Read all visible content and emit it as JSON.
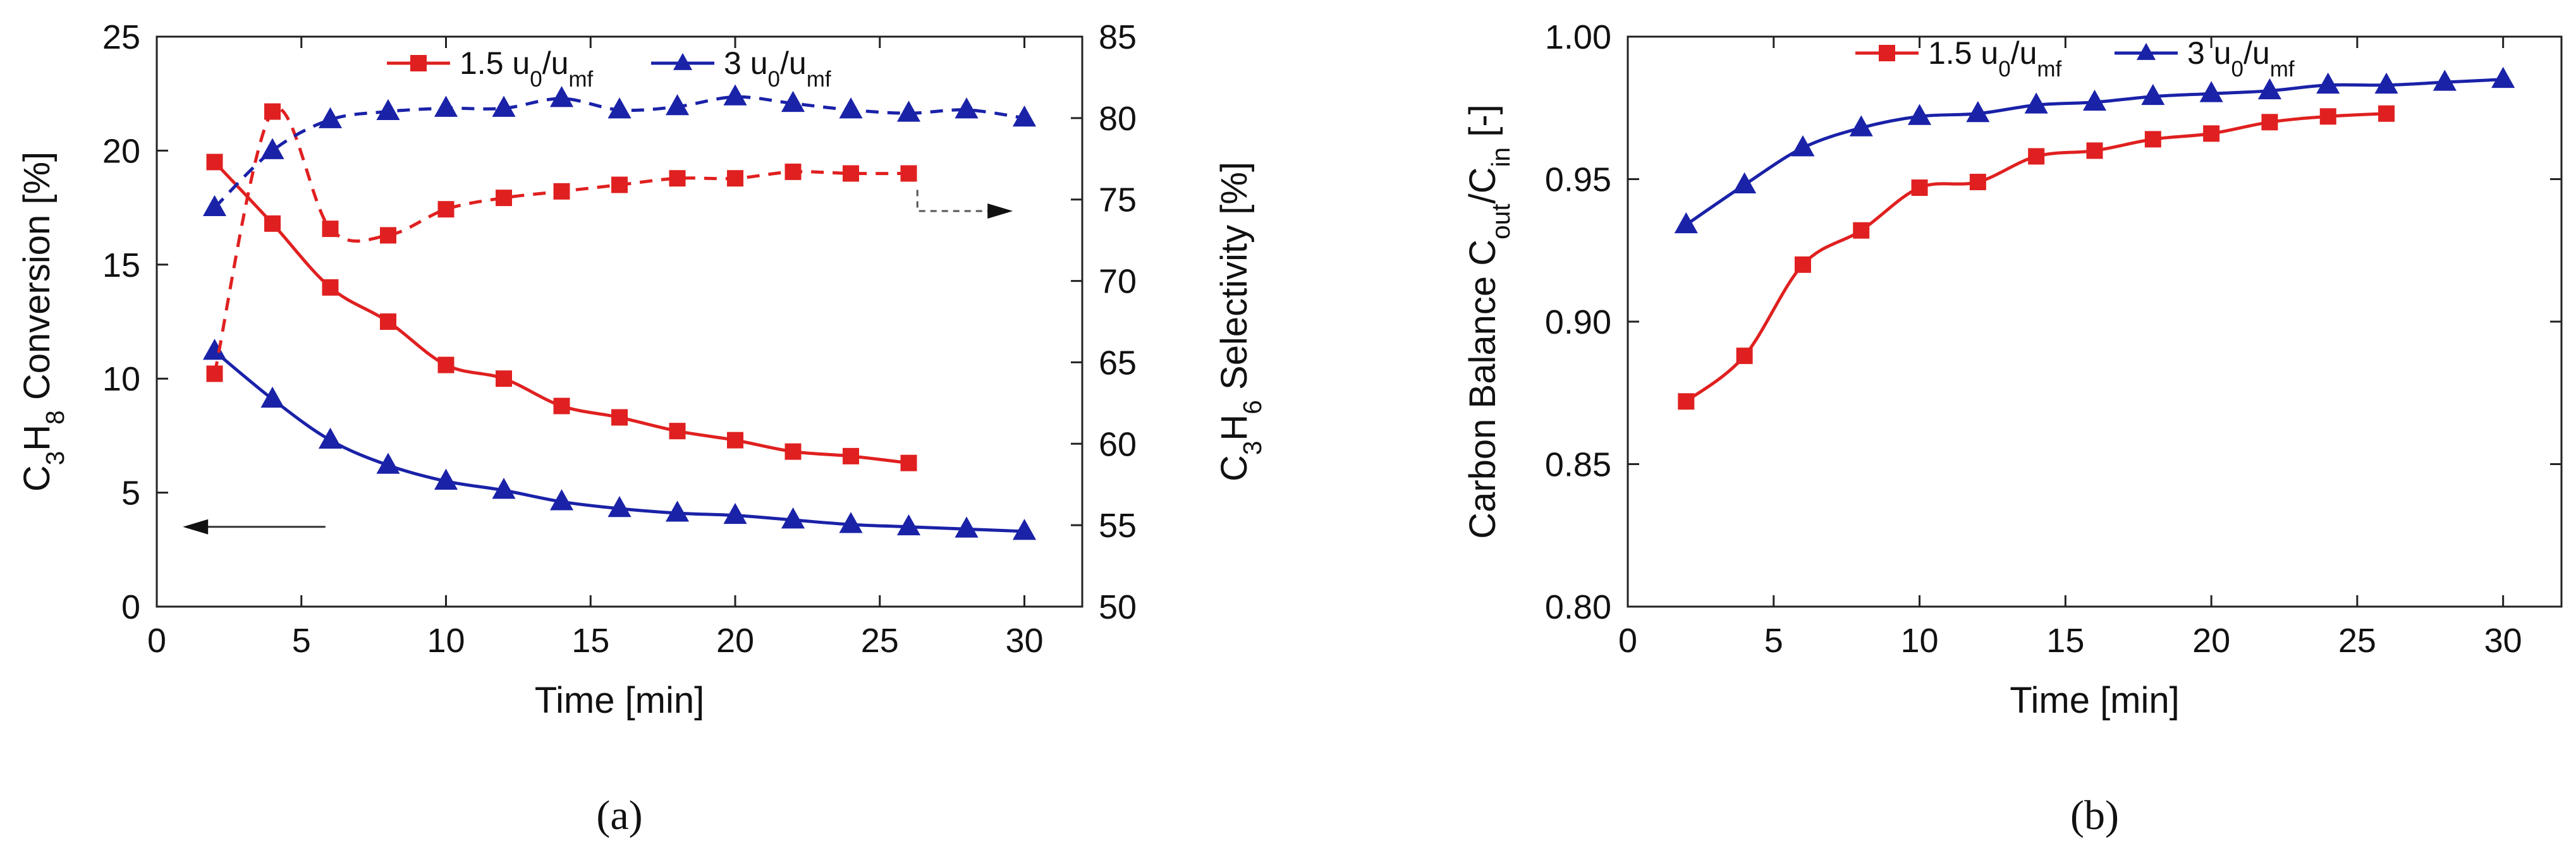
{
  "chart_data": [
    {
      "type": "line",
      "panel_label": "(a)",
      "xlabel": "Time [min]",
      "ylabel_left": {
        "main": "C",
        "s1": "3",
        "mid": "H",
        "s2": "8",
        "tail": " Conversion [%]"
      },
      "ylabel_right": {
        "main": "C",
        "s1": "3",
        "mid": "H",
        "s2": "6",
        "tail": " Selectivity [%]"
      },
      "xlim": [
        0,
        32
      ],
      "ylim_left": [
        0,
        25
      ],
      "ylim_right": [
        50,
        85
      ],
      "x_ticks": [
        0,
        5,
        10,
        15,
        20,
        25,
        30
      ],
      "y_ticks_left": [
        0,
        5,
        10,
        15,
        20,
        25
      ],
      "y_ticks_right": [
        50,
        55,
        60,
        65,
        70,
        75,
        80,
        85
      ],
      "legend": [
        {
          "name": "1.5 u",
          "sub0": "0",
          "slash": "/u",
          "sub1": "mf",
          "color": "#e02020",
          "marker": "square"
        },
        {
          "name": "3 u",
          "sub0": "0",
          "slash": "/u",
          "sub1": "mf",
          "color": "#1a22a8",
          "marker": "triangle"
        }
      ],
      "series": [
        {
          "name": "1.5 u0/umf conversion",
          "axis": "left",
          "style": "solid",
          "color": "#e02020",
          "marker": "square",
          "x": [
            2,
            4,
            6,
            8,
            10,
            12,
            14,
            16,
            18,
            20,
            22,
            24,
            26
          ],
          "y": [
            19.5,
            16.8,
            14.0,
            12.5,
            10.6,
            10.0,
            8.8,
            8.3,
            7.7,
            7.3,
            6.8,
            6.6,
            6.3
          ]
        },
        {
          "name": "3 u0/umf conversion",
          "axis": "left",
          "style": "solid",
          "color": "#1a22a8",
          "marker": "triangle",
          "x": [
            2,
            4,
            6,
            8,
            10,
            12,
            14,
            16,
            18,
            20,
            22,
            24,
            26,
            28,
            30
          ],
          "y": [
            11.2,
            9.1,
            7.3,
            6.2,
            5.5,
            5.1,
            4.6,
            4.3,
            4.1,
            4.0,
            3.8,
            3.6,
            3.5,
            3.4,
            3.3
          ]
        },
        {
          "name": "1.5 u0/umf selectivity",
          "axis": "right",
          "style": "dashed",
          "color": "#e02020",
          "marker": "square",
          "x": [
            2,
            4,
            6,
            8,
            10,
            12,
            14,
            16,
            18,
            20,
            22,
            24,
            26
          ],
          "y": [
            64.3,
            80.4,
            73.2,
            72.8,
            74.4,
            75.1,
            75.5,
            75.9,
            76.3,
            76.3,
            76.7,
            76.6,
            76.6
          ]
        },
        {
          "name": "3 u0/umf selectivity",
          "axis": "right",
          "style": "dashed",
          "color": "#1a22a8",
          "marker": "triangle",
          "x": [
            2,
            4,
            6,
            8,
            10,
            12,
            14,
            16,
            18,
            20,
            22,
            24,
            26,
            28,
            30
          ],
          "y": [
            74.5,
            78.0,
            79.9,
            80.4,
            80.6,
            80.6,
            81.2,
            80.5,
            80.7,
            81.3,
            80.9,
            80.5,
            80.3,
            80.5,
            80.0
          ]
        }
      ],
      "annotations": [
        {
          "type": "arrow",
          "direction": "left",
          "points_to_axis": "left"
        },
        {
          "type": "arrow",
          "direction": "right",
          "points_to_axis": "right"
        }
      ]
    },
    {
      "type": "line",
      "panel_label": "(b)",
      "xlabel": "Time [min]",
      "ylabel": {
        "main": "Carbon Balance C",
        "s1": "out",
        "mid": "/C",
        "s2": "in",
        "tail": " [-]"
      },
      "xlim": [
        0,
        32
      ],
      "ylim": [
        0.8,
        1.0
      ],
      "x_ticks": [
        0,
        5,
        10,
        15,
        20,
        25,
        30
      ],
      "y_ticks": [
        "0.80",
        "0.85",
        "0.90",
        "0.95",
        "1.00"
      ],
      "legend": [
        {
          "name": "1.5 u",
          "sub0": "0",
          "slash": "/u",
          "sub1": "mf",
          "color": "#e02020",
          "marker": "square"
        },
        {
          "name": "3 u",
          "sub0": "0",
          "slash": "/u",
          "sub1": "mf",
          "color": "#1a22a8",
          "marker": "triangle"
        }
      ],
      "series": [
        {
          "name": "1.5 u0/umf",
          "style": "solid",
          "color": "#e02020",
          "marker": "square",
          "x": [
            2,
            4,
            6,
            8,
            10,
            12,
            14,
            16,
            18,
            20,
            22,
            24,
            26
          ],
          "y": [
            0.872,
            0.888,
            0.92,
            0.932,
            0.947,
            0.949,
            0.958,
            0.96,
            0.964,
            0.966,
            0.97,
            0.972,
            0.973
          ]
        },
        {
          "name": "3 u0/umf",
          "style": "solid",
          "color": "#1a22a8",
          "marker": "triangle",
          "x": [
            2,
            4,
            6,
            8,
            10,
            12,
            14,
            16,
            18,
            20,
            22,
            24,
            26,
            28,
            30
          ],
          "y": [
            0.934,
            0.948,
            0.961,
            0.968,
            0.972,
            0.973,
            0.976,
            0.977,
            0.979,
            0.98,
            0.981,
            0.983,
            0.983,
            0.984,
            0.985
          ]
        }
      ]
    }
  ]
}
